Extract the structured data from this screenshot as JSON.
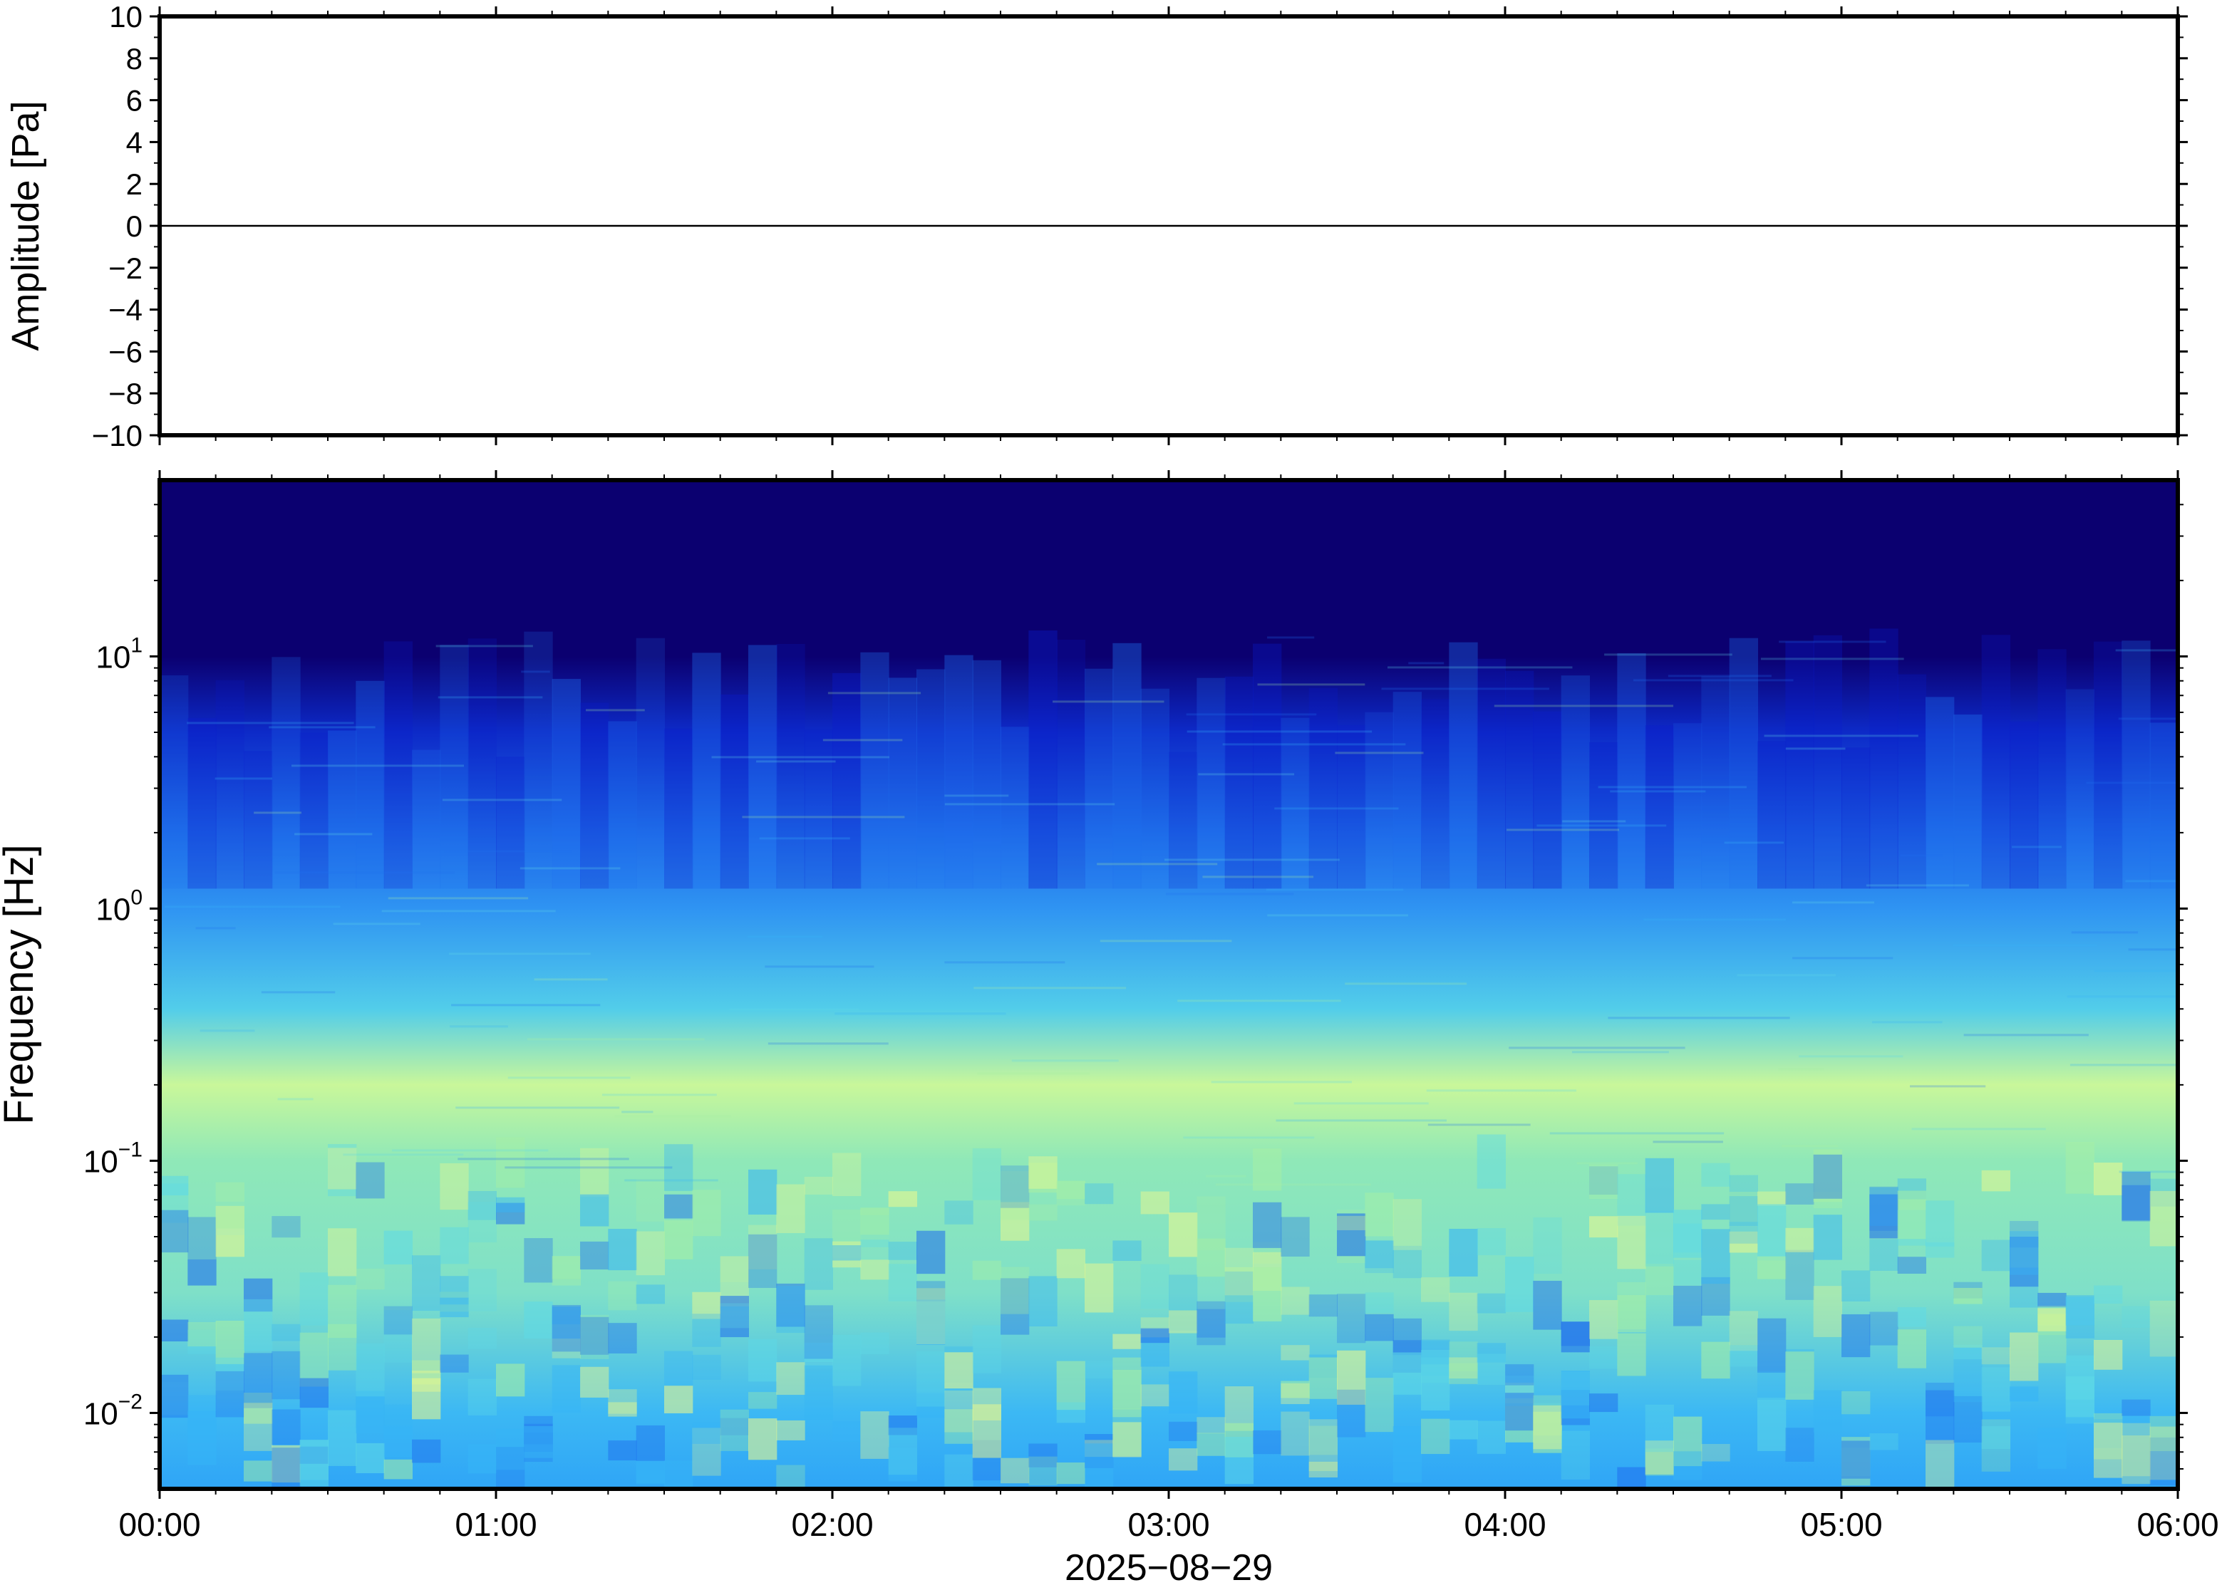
{
  "chart_data": [
    {
      "type": "line",
      "ylabel": "Amplitude [Pa]",
      "ylim": [
        -10,
        10
      ],
      "yticks": [
        10,
        8,
        6,
        4,
        2,
        0,
        -2,
        -4,
        -6,
        -8,
        -10
      ],
      "ytick_labels": [
        "10",
        "8",
        "6",
        "4",
        "2",
        "0",
        "−2",
        "−4",
        "−6",
        "−8",
        "−10"
      ],
      "series": [
        {
          "x": [
            "00:00",
            "06:00"
          ],
          "values": [
            0,
            0
          ],
          "color": "#000000"
        }
      ]
    },
    {
      "type": "heatmap",
      "ylabel": "Frequency [Hz]",
      "yscale": "log",
      "ylim": [
        0.005,
        50
      ],
      "yticks": [
        10,
        1,
        0.1,
        0.01
      ],
      "ytick_labels": [
        {
          "base": "10",
          "exp": "1"
        },
        {
          "base": "10",
          "exp": "0"
        },
        {
          "base": "10",
          "exp": "−1"
        },
        {
          "base": "10",
          "exp": "−2"
        }
      ],
      "xlabel": "2025−08−29",
      "x_ticks": [
        "00:00",
        "01:00",
        "02:00",
        "03:00",
        "04:00",
        "05:00",
        "06:00"
      ],
      "colormap": [
        "#0b0070",
        "#0a1ccc",
        "#1f6fee",
        "#36b4f6",
        "#5ed9e6",
        "#a7f0a4",
        "#e8f88e"
      ],
      "color_by_frequency": [
        {
          "hz": 40,
          "color": "#0b0070"
        },
        {
          "hz": 10,
          "color": "#0b0070"
        },
        {
          "hz": 5,
          "color": "#0d2ac8"
        },
        {
          "hz": 2,
          "color": "#1e6ae8"
        },
        {
          "hz": 1,
          "color": "#2f94f2"
        },
        {
          "hz": 0.4,
          "color": "#52cdea"
        },
        {
          "hz": 0.2,
          "color": "#c9f79a"
        },
        {
          "hz": 0.1,
          "color": "#8fe8b8"
        },
        {
          "hz": 0.03,
          "color": "#7fe0c8"
        },
        {
          "hz": 0.01,
          "color": "#3cb8f4"
        },
        {
          "hz": 0.005,
          "color": "#2fa5f6"
        }
      ]
    }
  ]
}
